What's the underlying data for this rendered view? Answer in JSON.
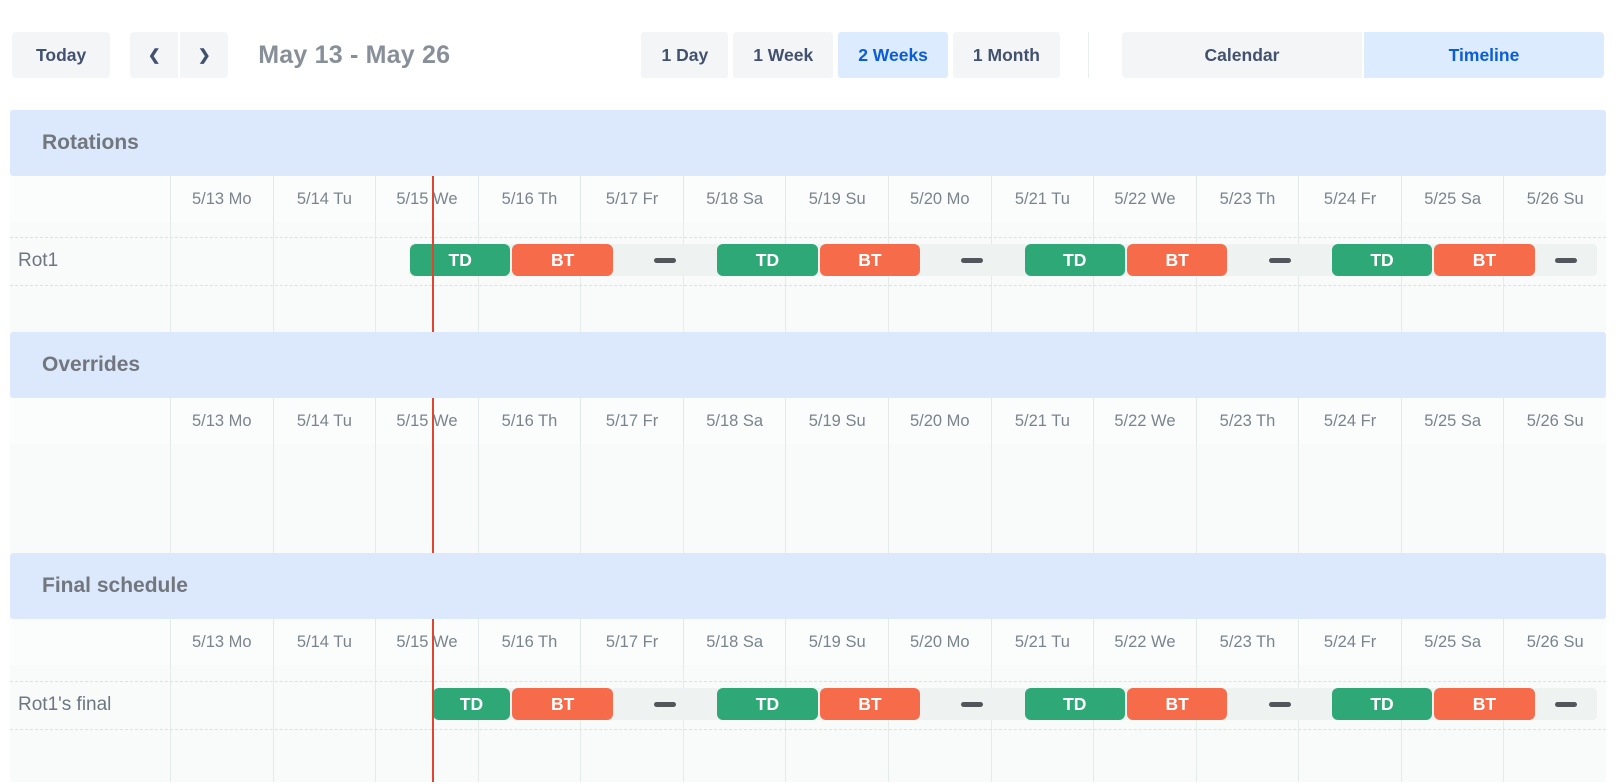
{
  "toolbar": {
    "today_label": "Today",
    "prev_icon": "❮",
    "next_icon": "❯",
    "date_range": "May 13 - May 26",
    "views": [
      {
        "label": "1 Day",
        "active": false
      },
      {
        "label": "1 Week",
        "active": false
      },
      {
        "label": "2 Weeks",
        "active": true
      },
      {
        "label": "1 Month",
        "active": false
      }
    ],
    "modes": [
      {
        "label": "Calendar",
        "active": false
      },
      {
        "label": "Timeline",
        "active": true
      }
    ]
  },
  "dates": [
    "5/13 Mo",
    "5/14 Tu",
    "5/15 We",
    "5/16 Th",
    "5/17 Fr",
    "5/18 Sa",
    "5/19 Su",
    "5/20 Mo",
    "5/21 Tu",
    "5/22 We",
    "5/23 Th",
    "5/24 Fr",
    "5/25 Sa",
    "5/26 Su"
  ],
  "sections": {
    "rotations": {
      "title": "Rotations",
      "row_label": "Rot1"
    },
    "overrides": {
      "title": "Overrides"
    },
    "final": {
      "title": "Final schedule",
      "row_label": "Rot1's final"
    }
  },
  "participants": {
    "TD": {
      "label": "TD",
      "color": "#2fa877"
    },
    "BT": {
      "label": "BT",
      "color": "#f66c4b"
    }
  },
  "timeline": {
    "days_visible": 14,
    "now_day_fraction": 2.554,
    "rotation_row": {
      "track_start": 2.333,
      "track_end": 13.93,
      "events": [
        {
          "type": "shift",
          "participant": "TD",
          "start": 2.333,
          "end": 3.333
        },
        {
          "type": "shift",
          "participant": "BT",
          "start": 3.333,
          "end": 4.333
        },
        {
          "type": "gap",
          "start": 4.333,
          "end": 5.333
        },
        {
          "type": "shift",
          "participant": "TD",
          "start": 5.333,
          "end": 6.333
        },
        {
          "type": "shift",
          "participant": "BT",
          "start": 6.333,
          "end": 7.333
        },
        {
          "type": "gap",
          "start": 7.333,
          "end": 8.333
        },
        {
          "type": "shift",
          "participant": "TD",
          "start": 8.333,
          "end": 9.333
        },
        {
          "type": "shift",
          "participant": "BT",
          "start": 9.333,
          "end": 10.333
        },
        {
          "type": "gap",
          "start": 10.333,
          "end": 11.333
        },
        {
          "type": "shift",
          "participant": "TD",
          "start": 11.333,
          "end": 12.333
        },
        {
          "type": "shift",
          "participant": "BT",
          "start": 12.333,
          "end": 13.333
        },
        {
          "type": "gap",
          "start": 13.333,
          "end": 13.93
        }
      ]
    },
    "final_row": {
      "track_start": 2.554,
      "track_end": 13.93,
      "events": [
        {
          "type": "shift",
          "participant": "TD",
          "start": 2.554,
          "end": 3.333
        },
        {
          "type": "shift",
          "participant": "BT",
          "start": 3.333,
          "end": 4.333
        },
        {
          "type": "gap",
          "start": 4.333,
          "end": 5.333
        },
        {
          "type": "shift",
          "participant": "TD",
          "start": 5.333,
          "end": 6.333
        },
        {
          "type": "shift",
          "participant": "BT",
          "start": 6.333,
          "end": 7.333
        },
        {
          "type": "gap",
          "start": 7.333,
          "end": 8.333
        },
        {
          "type": "shift",
          "participant": "TD",
          "start": 8.333,
          "end": 9.333
        },
        {
          "type": "shift",
          "participant": "BT",
          "start": 9.333,
          "end": 10.333
        },
        {
          "type": "gap",
          "start": 10.333,
          "end": 11.333
        },
        {
          "type": "shift",
          "participant": "TD",
          "start": 11.333,
          "end": 12.333
        },
        {
          "type": "shift",
          "participant": "BT",
          "start": 12.333,
          "end": 13.333
        },
        {
          "type": "gap",
          "start": 13.333,
          "end": 13.93
        }
      ]
    }
  },
  "colors": {
    "section_header_bg": "#dce8fb",
    "active_button_bg": "#dcebfd",
    "active_button_text": "#0b5cd7",
    "button_bg": "#f4f5f7",
    "button_text": "#42526e",
    "shift_green": "#2fa877",
    "shift_orange": "#f66c4b",
    "gap_track": "#eef2f1",
    "gap_dash": "#53575c",
    "now_line": "#e2452f"
  }
}
